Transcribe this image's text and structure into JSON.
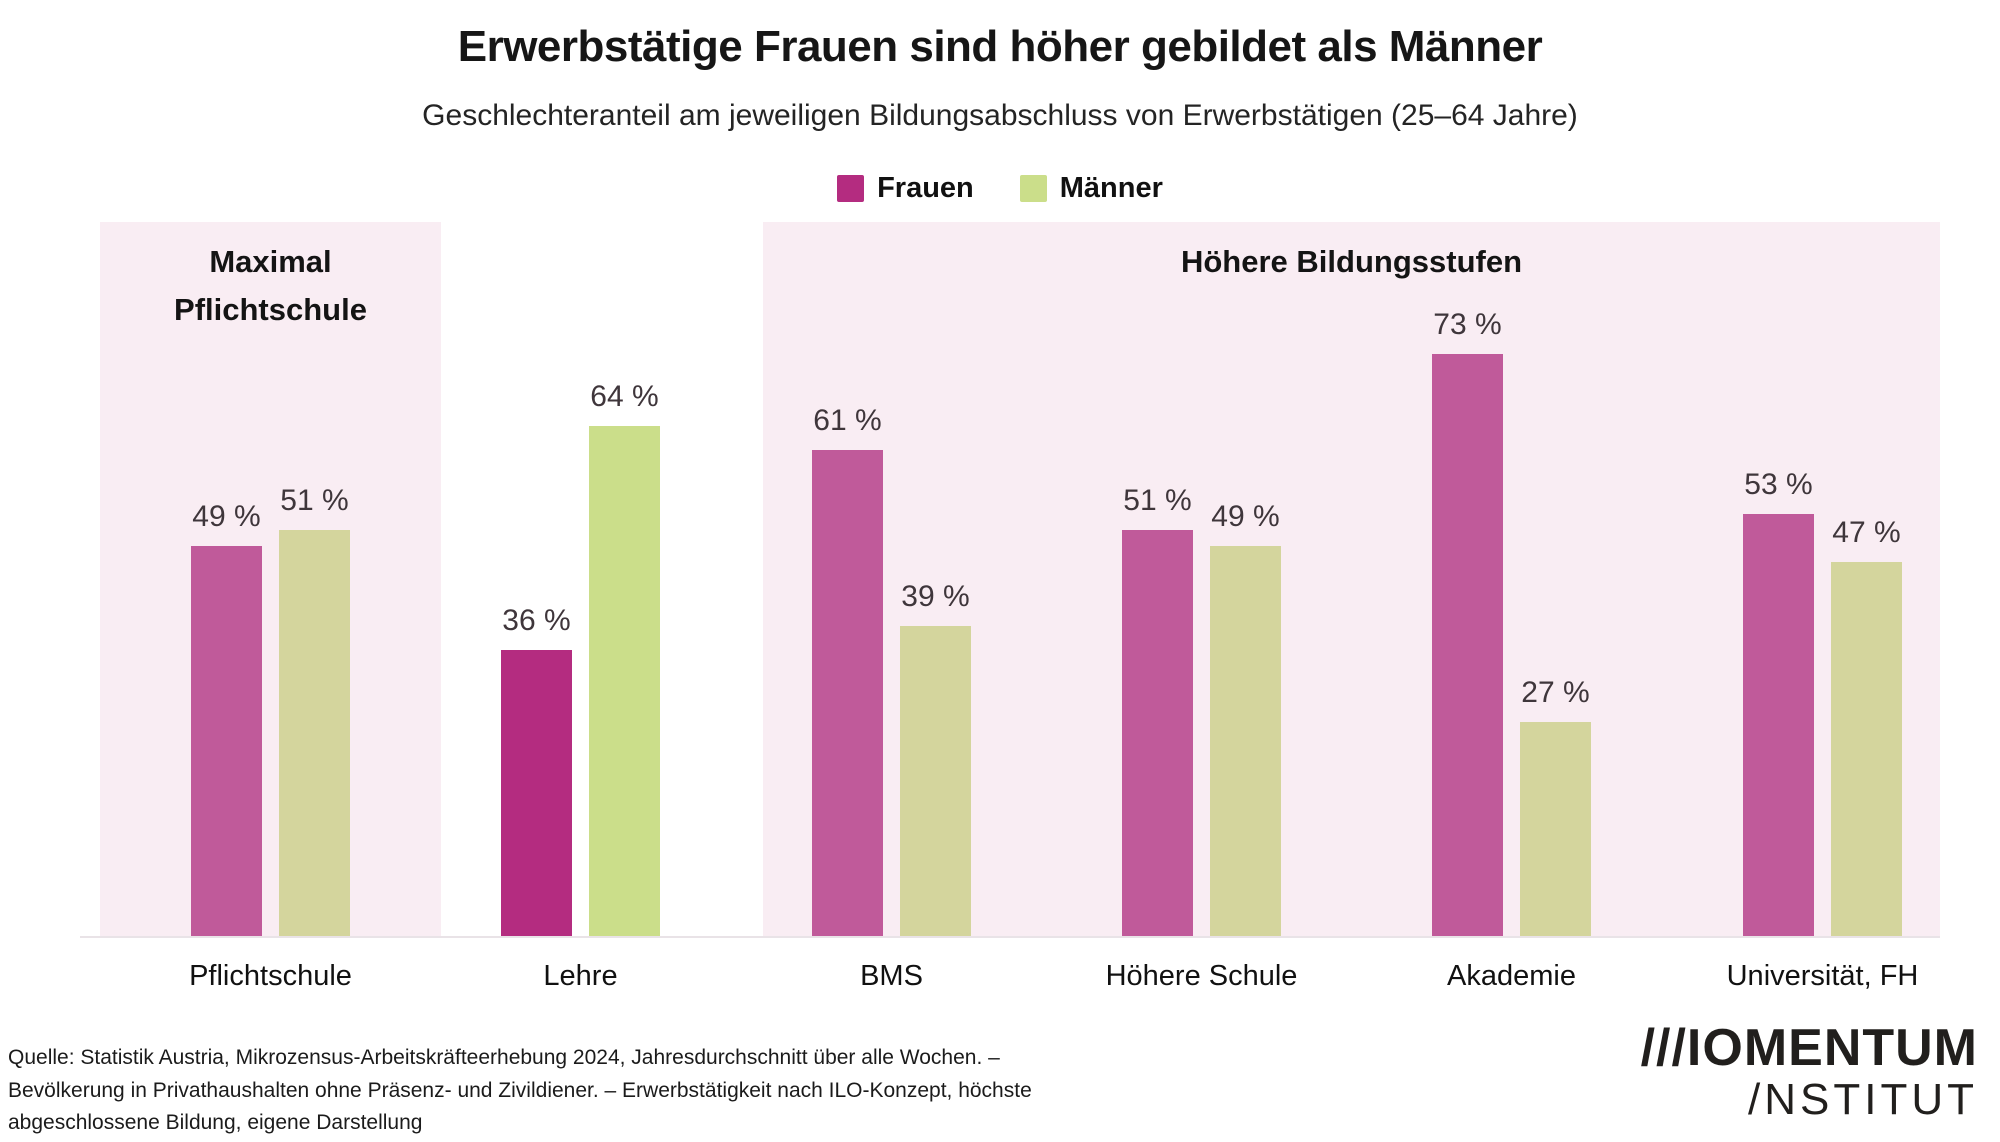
{
  "title": "Erwerbstätige Frauen sind höher gebildet als Männer",
  "subtitle": "Geschlechteranteil am jeweiligen Bildungsabschluss von Erwerbstätigen (25–64 Jahre)",
  "legend": [
    {
      "label": "Frauen",
      "color": "#b42c80"
    },
    {
      "label": "Männer",
      "color": "#cbde8a"
    }
  ],
  "panels": {
    "left": {
      "line1": "Maximal",
      "line2": "Pflichtschule"
    },
    "right": {
      "title": "Höhere Bildungsstufen"
    }
  },
  "chart_data": {
    "type": "bar",
    "title": "Erwerbstätige Frauen sind höher gebildet als Männer",
    "subtitle": "Geschlechteranteil am jeweiligen Bildungsabschluss von Erwerbstätigen (25–64 Jahre)",
    "categories": [
      "Pflichtschule",
      "Lehre",
      "BMS",
      "Höhere Schule",
      "Akademie",
      "Universität, FH"
    ],
    "series": [
      {
        "name": "Frauen",
        "values": [
          49,
          36,
          61,
          51,
          73,
          53
        ],
        "color_strong": "#b42c80",
        "color_muted": "#c05a9a"
      },
      {
        "name": "Männer",
        "values": [
          51,
          64,
          39,
          49,
          27,
          47
        ],
        "color_strong": "#cbde8a",
        "color_muted": "#d4d59d"
      }
    ],
    "value_suffix": " %",
    "in_panel": [
      true,
      false,
      true,
      true,
      true,
      true
    ],
    "panel_groups": {
      "Maximal Pflichtschule": [
        "Pflichtschule"
      ],
      "Höhere Bildungsstufen": [
        "BMS",
        "Höhere Schule",
        "Akademie",
        "Universität, FH"
      ]
    },
    "ylim": [
      0,
      100
    ],
    "grid": false,
    "yaxis_visible": false,
    "legend_position": "top"
  },
  "colors": {
    "panel_background": "#f9edf3",
    "baseline": "#e9e3e7",
    "value_label": "#3f363b",
    "text": "#1a1a1a"
  },
  "source_lines": [
    "Quelle: Statistik Austria,  Mikrozensus-Arbeitskräfteerhebung 2024, Jahresdurchschnitt über alle Wochen. –",
    "Bevölkerung in Privathaushalten ohne  Präsenz- und Zivildiener. – Erwerbstätigkeit nach ILO-Konzept, höchste",
    "abgeschlossene Bildung, eigene Darstellung"
  ],
  "logo": {
    "line1": "///IOMENTUM",
    "line2": "/NSTITUT"
  }
}
